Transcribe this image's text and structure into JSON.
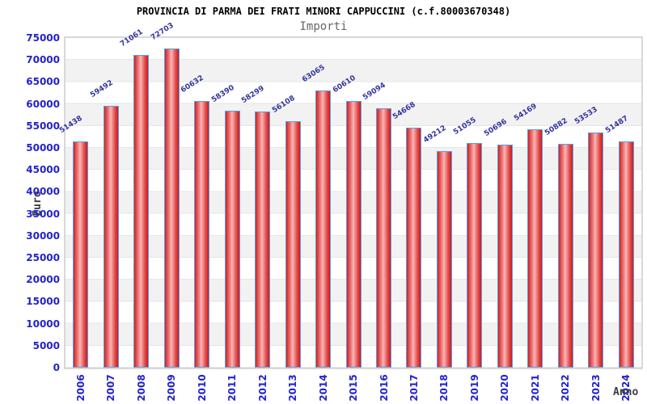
{
  "chart_data": {
    "type": "bar",
    "title": "PROVINCIA DI PARMA DEI FRATI MINORI CAPPUCCINI (c.f.80003670348)",
    "subtitle": "Importi",
    "xlabel": "Anno",
    "ylabel": "Euro",
    "categories": [
      "2006",
      "2007",
      "2008",
      "2009",
      "2010",
      "2011",
      "2012",
      "2013",
      "2014",
      "2015",
      "2016",
      "2017",
      "2018",
      "2019",
      "2020",
      "2021",
      "2022",
      "2023",
      "2024"
    ],
    "values": [
      51438,
      59492,
      71061,
      72703,
      60632,
      58390,
      58299,
      56108,
      63065,
      60610,
      59094,
      54668,
      49212,
      51055,
      50696,
      54169,
      50882,
      53533,
      51487
    ],
    "ylim": [
      0,
      75000
    ],
    "ytick_step": 5000,
    "grid": "horizontal-bands",
    "legend": "none",
    "colors": {
      "bar_fill_edge": "#c91d1d",
      "bar_fill_center": "#f8b6b6",
      "bar_border": "#58a0e3",
      "tick_label": "#2323cc",
      "value_label": "#3333a0",
      "axis_title": "#3d3d3d",
      "band_light": "#ffffff",
      "band_dark": "#f2f2f2",
      "frame": "#d8d8d8",
      "title_color": "#000000",
      "subtitle_color": "#666666"
    }
  }
}
